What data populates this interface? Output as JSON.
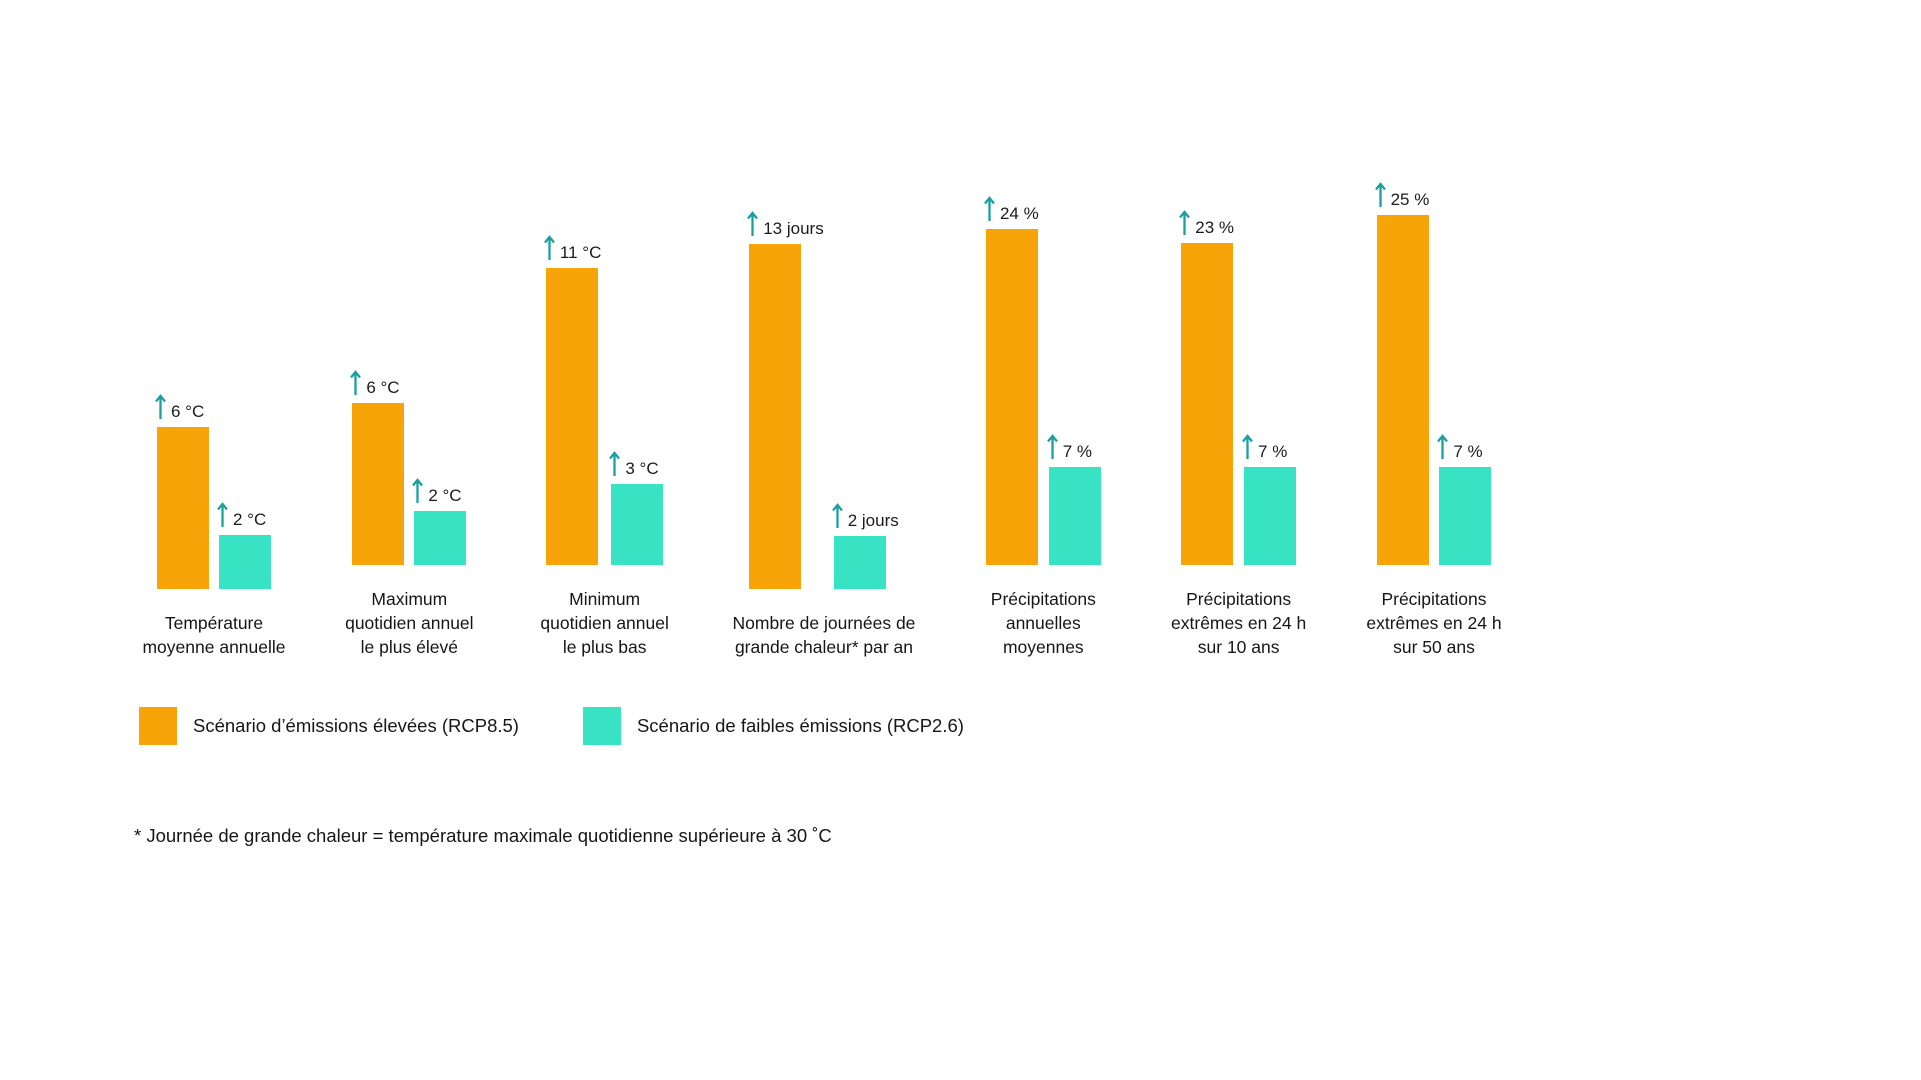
{
  "chart_data": {
    "type": "bar",
    "title": "",
    "categories": [
      "Température\nmoyenne annuelle",
      "Maximum\nquotidien annuel\nle plus élevé",
      "Minimum\nquotidien annuel\nle plus bas",
      "Nombre de journées de\ngrande chaleur* par an",
      "Précipitations\nannuelles\nmoyennes",
      "Précipitations\nextrêmes en 24 h\nsur 10 ans",
      "Précipitations\nextrêmes en 24 h\nsur 50 ans"
    ],
    "units": [
      "°C",
      "°C",
      "°C",
      "jours",
      "%",
      "%",
      "%"
    ],
    "series": [
      {
        "name": "Scénario d’émissions élevées (RCP8.5)",
        "color": "#F7A408",
        "values": [
          6,
          6,
          11,
          13,
          24,
          23,
          25
        ],
        "labels": [
          "6 °C",
          "6 °C",
          "11 °C",
          "13 jours",
          "24 %",
          "23 %",
          "25 %"
        ]
      },
      {
        "name": "Scénario de faibles émissions (RCP2.6)",
        "color": "#38E3C3",
        "values": [
          2,
          2,
          3,
          2,
          7,
          7,
          7
        ],
        "labels": [
          "2 °C",
          "2 °C",
          "3 °C",
          "2 jours",
          "7 %",
          "7 %",
          "7 %"
        ]
      }
    ],
    "legend_position": "bottom-left",
    "grid": false,
    "axes": "hidden"
  },
  "footnote": "* Journée de grande chaleur = température maximale quotidienne supérieure à 30 ˚C",
  "colors": {
    "high": "#F7A408",
    "low": "#38E3C3",
    "arrow": "#1C9FA0",
    "text": "#161616",
    "background": "#ffffff"
  }
}
